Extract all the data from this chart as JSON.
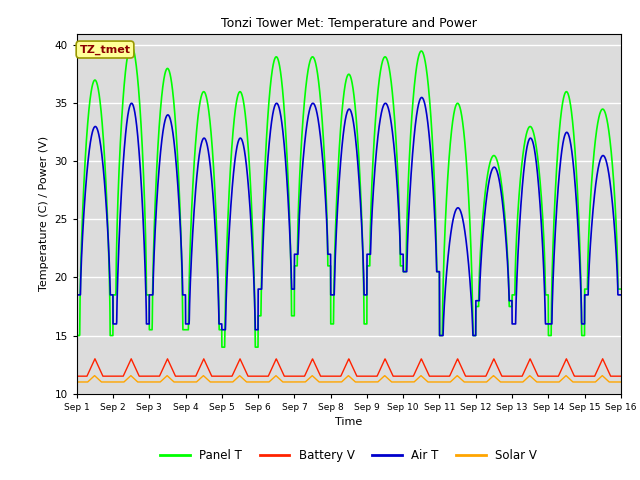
{
  "title": "Tonzi Tower Met: Temperature and Power",
  "xlabel": "Time",
  "ylabel": "Temperature (C) / Power (V)",
  "ylim": [
    10,
    41
  ],
  "yticks": [
    10,
    15,
    20,
    25,
    30,
    35,
    40
  ],
  "x_tick_labels": [
    "Sep 1",
    "Sep 2",
    "Sep 3",
    "Sep 4",
    "Sep 5",
    "Sep 6",
    "Sep 7",
    "Sep 8",
    "Sep 9",
    "Sep 10",
    "Sep 11",
    "Sep 12",
    "Sep 13",
    "Sep 14",
    "Sep 15",
    "Sep 16"
  ],
  "panel_color": "#00FF00",
  "battery_color": "#FF2200",
  "air_color": "#0000CC",
  "solar_color": "#FFA500",
  "bg_color": "#DCDCDC",
  "annotation_text": "TZ_tmet",
  "annotation_facecolor": "#FFFF99",
  "annotation_edgecolor": "#999900",
  "annotation_textcolor": "#8B0000",
  "legend_labels": [
    "Panel T",
    "Battery V",
    "Air T",
    "Solar V"
  ],
  "n_days": 15,
  "panel_peak_values": [
    37,
    40,
    38,
    36,
    36,
    39,
    39,
    37.5,
    39,
    39.5,
    35,
    30.5,
    33,
    36,
    34.5
  ],
  "panel_min_values": [
    15,
    18.5,
    15.5,
    15.5,
    14,
    16.7,
    21,
    16,
    21,
    20.5,
    15,
    17.5,
    18.5,
    15,
    19
  ],
  "air_peak_values": [
    33,
    35,
    34,
    32,
    32,
    35,
    35,
    34.5,
    35,
    35.5,
    26,
    29.5,
    32,
    32.5,
    30.5
  ],
  "air_min_values": [
    18.5,
    16,
    18.5,
    16,
    15.5,
    19,
    22,
    18.5,
    22,
    20.5,
    15,
    18,
    16,
    16,
    18.5
  ]
}
